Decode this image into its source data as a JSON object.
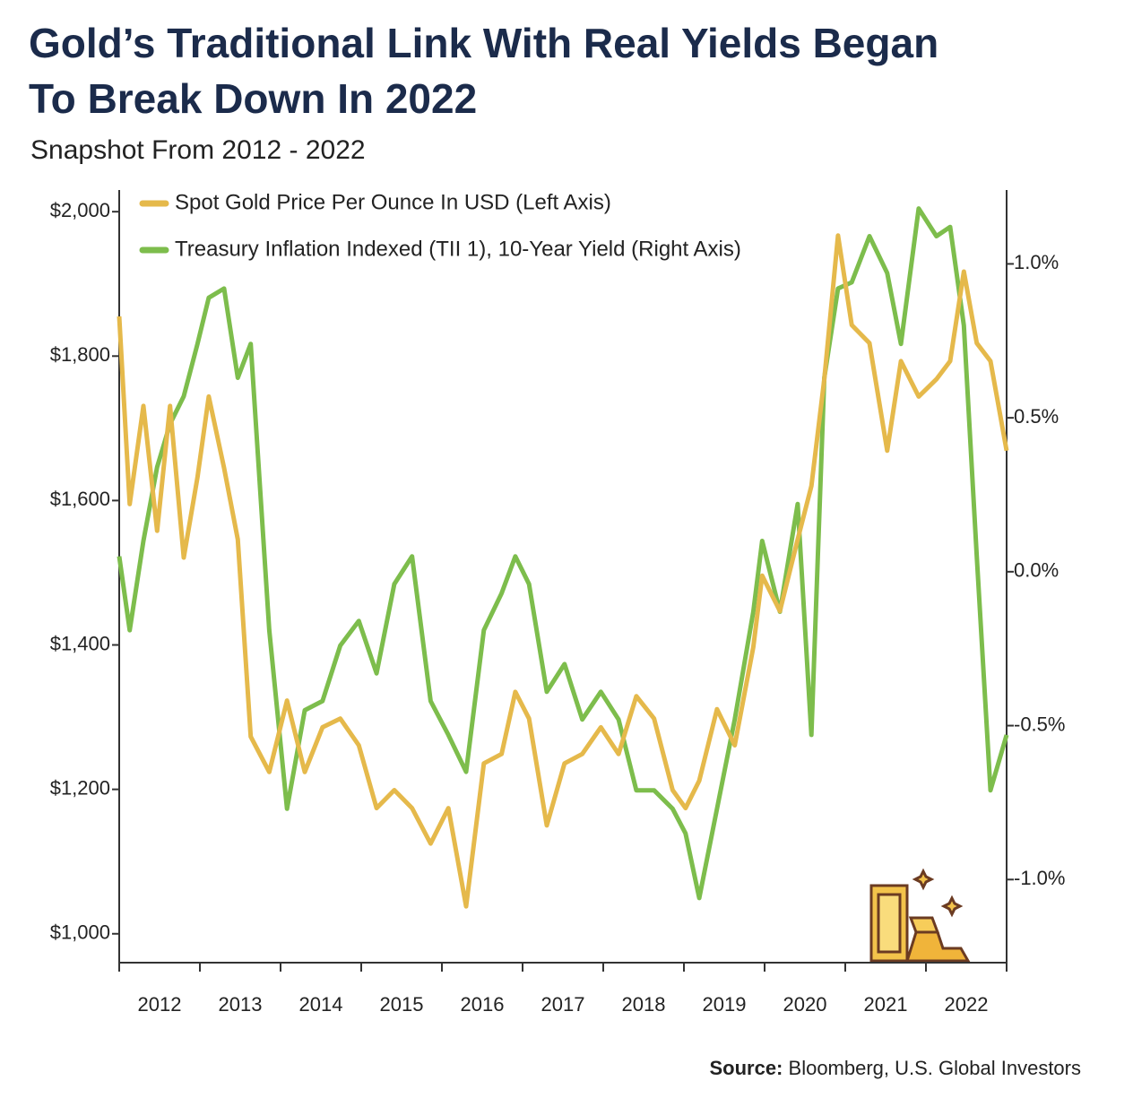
{
  "chart_data": {
    "type": "line",
    "title": [
      "Gold’s Traditional Link With Real Yields Began",
      "To Break Down In 2022"
    ],
    "subtitle": "Snapshot From 2012 - 2022",
    "source_label": "Source:",
    "source": "Bloomberg, U.S. Global Investors",
    "x": [
      2012.0,
      2012.13,
      2012.3,
      2012.47,
      2012.63,
      2012.8,
      2012.97,
      2013.11,
      2013.3,
      2013.47,
      2013.63,
      2013.86,
      2014.08,
      2014.3,
      2014.52,
      2014.74,
      2014.97,
      2015.19,
      2015.41,
      2015.63,
      2015.86,
      2016.08,
      2016.3,
      2016.52,
      2016.74,
      2016.91,
      2017.08,
      2017.3,
      2017.52,
      2017.74,
      2017.97,
      2018.19,
      2018.41,
      2018.63,
      2018.86,
      2019.02,
      2019.19,
      2019.41,
      2019.63,
      2019.86,
      2019.97,
      2020.19,
      2020.41,
      2020.58,
      2020.74,
      2020.91,
      2021.08,
      2021.3,
      2021.52,
      2021.69,
      2021.91,
      2022.13,
      2022.3,
      2022.47,
      2022.63,
      2022.8,
      2023.0
    ],
    "series": [
      {
        "name": "Treasury Inflation Indexed (TII 1), 10-Year Yield (Right Axis)",
        "color": "#7dbd4c",
        "axis": "y2",
        "values": [
          0.05,
          -0.19,
          0.1,
          0.34,
          0.48,
          0.57,
          0.74,
          0.89,
          0.92,
          0.63,
          0.74,
          -0.19,
          -0.77,
          -0.45,
          -0.42,
          -0.24,
          -0.16,
          -0.33,
          -0.04,
          0.05,
          -0.42,
          -0.53,
          -0.65,
          -0.19,
          -0.07,
          0.05,
          -0.04,
          -0.39,
          -0.3,
          -0.48,
          -0.39,
          -0.48,
          -0.71,
          -0.71,
          -0.77,
          -0.85,
          -1.06,
          -0.77,
          -0.48,
          -0.13,
          0.1,
          -0.13,
          0.22,
          -0.53,
          0.63,
          0.92,
          0.94,
          1.09,
          0.97,
          0.74,
          1.18,
          1.09,
          1.12,
          0.8,
          0.05,
          -0.71,
          -0.53
        ]
      },
      {
        "name": "Spot Gold Price Per Ounce In USD (Left Axis)",
        "color": "#e5b94b",
        "values": [
          1855,
          1595,
          1731,
          1558,
          1731,
          1521,
          1632,
          1744,
          1645,
          1546,
          1273,
          1224,
          1323,
          1224,
          1286,
          1298,
          1261,
          1174,
          1199,
          1174,
          1125,
          1174,
          1038,
          1236,
          1249,
          1335,
          1298,
          1150,
          1236,
          1249,
          1286,
          1249,
          1329,
          1298,
          1199,
          1174,
          1212,
          1311,
          1261,
          1397,
          1496,
          1447,
          1546,
          1620,
          1768,
          1967,
          1843,
          1818,
          1669,
          1793,
          1744,
          1768,
          1793,
          1917,
          1818,
          1793,
          1669
        ]
      }
    ],
    "xlim": [
      2012,
      2023
    ],
    "xticks": [
      2012,
      2013,
      2014,
      2015,
      2016,
      2017,
      2018,
      2019,
      2020,
      2021,
      2022
    ],
    "ylim": [
      960,
      2030
    ],
    "yticks": [
      {
        "value": 1000,
        "label": "$1,000"
      },
      {
        "value": 1200,
        "label": "$1,200"
      },
      {
        "value": 1400,
        "label": "$1,400"
      },
      {
        "value": 1600,
        "label": "$1,600"
      },
      {
        "value": 1800,
        "label": "$1,800"
      },
      {
        "value": 2000,
        "label": "$2,000"
      }
    ],
    "y2lim": [
      -1.27,
      1.24
    ],
    "y2ticks": [
      {
        "value": -1.0,
        "label": "-1.0%"
      },
      {
        "value": -0.5,
        "label": "-0.5%"
      },
      {
        "value": 0.0,
        "label": "0.0%"
      },
      {
        "value": 0.5,
        "label": "0.5%"
      },
      {
        "value": 1.0,
        "label": "1.0%"
      }
    ],
    "legend": "upper left"
  }
}
